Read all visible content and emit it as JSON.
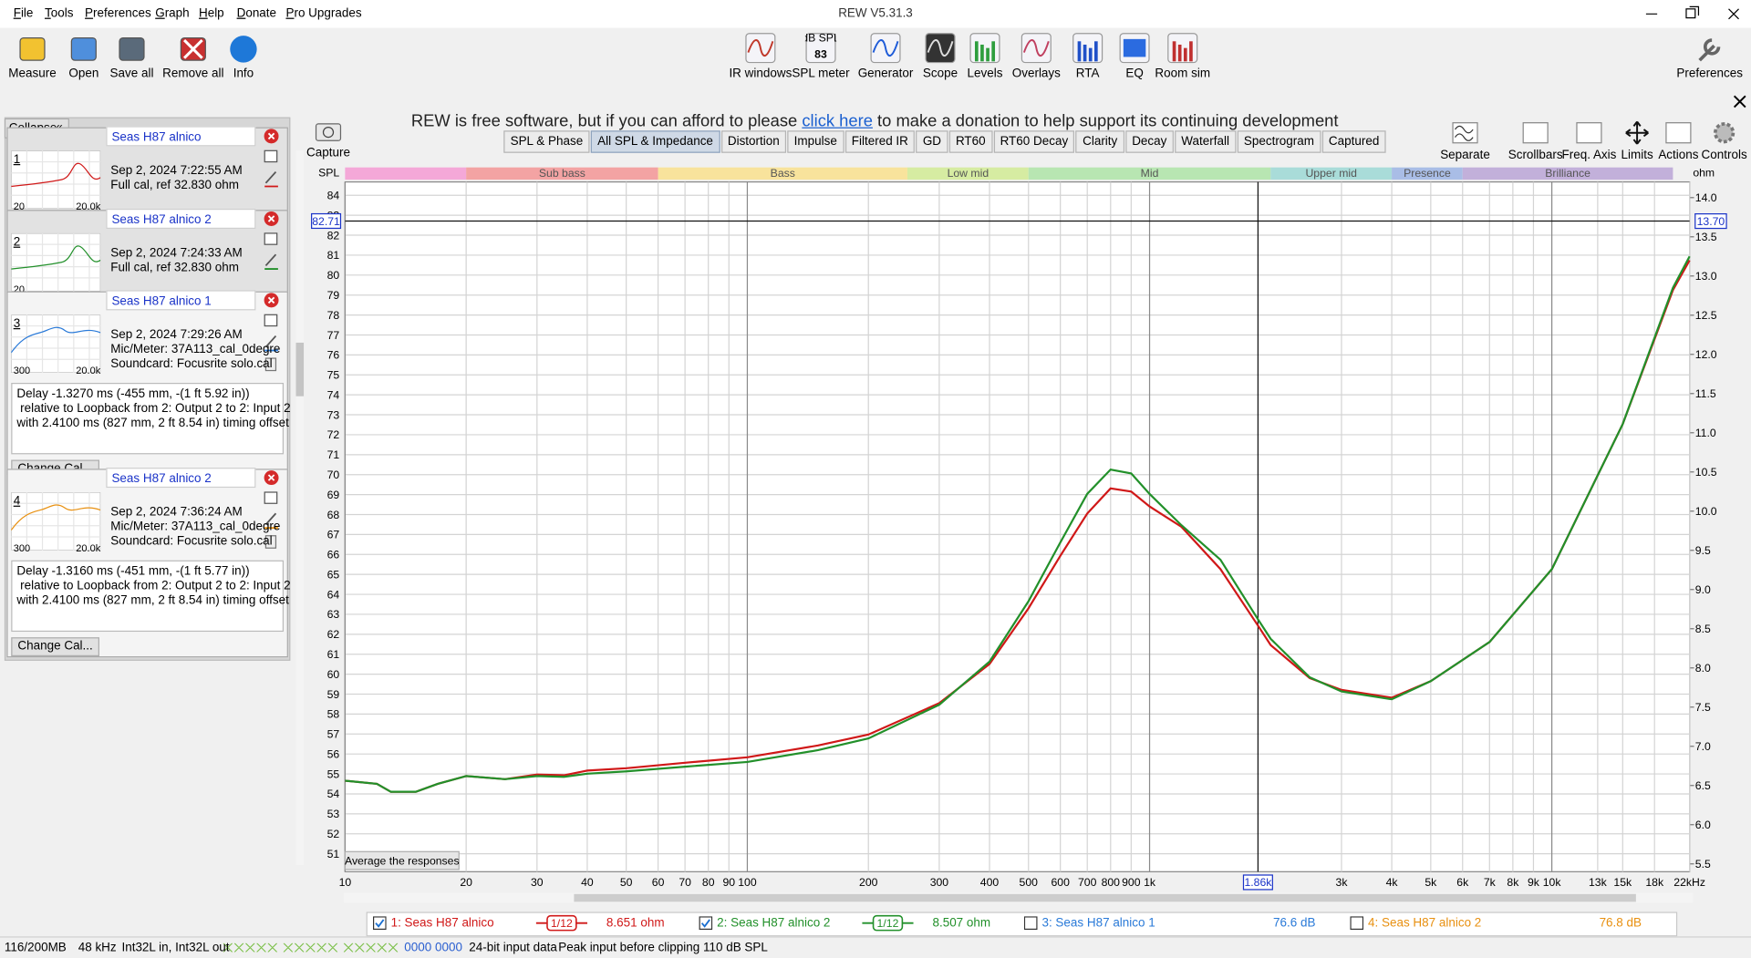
{
  "window": {
    "title": "REW V5.31.3"
  },
  "menu": [
    "File",
    "Tools",
    "Preferences",
    "Graph",
    "Help",
    "Donate",
    "Pro Upgrades"
  ],
  "toolbar_left": [
    "Measure",
    "Open",
    "Save all",
    "Remove all",
    "Info"
  ],
  "toolbar_center": [
    "IR windows",
    "SPL meter",
    "Generator",
    "Scope",
    "Levels",
    "Overlays",
    "RTA",
    "EQ",
    "Room sim"
  ],
  "spl_meter_icon": {
    "unit": "dB SPL",
    "reading": 83
  },
  "toolbar_right": [
    "Preferences"
  ],
  "banner": {
    "before": "REW is free software, but if you can afford to please",
    "link": "click here",
    "after": "to make a donation to help support its continuing development"
  },
  "panel": {
    "collapse": "Collapse",
    "measurements": [
      {
        "number": "1",
        "name": "Seas H87 alnico",
        "color": "#d01818",
        "lines": [
          "Sep 2, 2024 7:22:55 AM",
          "Full cal, ref 32.830 ohm"
        ],
        "thumb_labels": [
          "20",
          "20.0k"
        ]
      },
      {
        "number": "2",
        "name": "Seas H87 alnico 2",
        "color": "#22902a",
        "lines": [
          "Sep 2, 2024 7:24:33 AM",
          "Full cal, ref 32.830 ohm"
        ],
        "thumb_labels": [
          "20"
        ]
      },
      {
        "number": "3",
        "name": "Seas H87 alnico 1",
        "color": "#2a7ad8",
        "lines": [
          "Sep 2, 2024 7:29:26 AM",
          "Mic/Meter: 37A113_cal_0degre",
          "Soundcard: Focusrite solo.cal"
        ],
        "thumb_labels": [
          "300",
          "20.0k"
        ],
        "note": [
          "Delay -1.3270 ms (-455 mm, -(1 ft 5.92 in))",
          " relative to Loopback from 2: Output 2 to 2: Input 2",
          "with 2.4100 ms (827 mm, 2 ft 8.54 in) timing offset"
        ],
        "button": "Change Cal..."
      },
      {
        "number": "4",
        "name": "Seas H87 alnico 2",
        "color": "#e89010",
        "lines": [
          "Sep 2, 2024 7:36:24 AM",
          "Mic/Meter: 37A113_cal_0degre",
          "Soundcard: Focusrite solo.cal"
        ],
        "thumb_labels": [
          "300",
          "20.0k"
        ],
        "note": [
          "Delay -1.3160 ms (-451 mm, -(1 ft 5.77 in))",
          " relative to Loopback from 2: Output 2 to 2: Input 2",
          "with 2.4100 ms (827 mm, 2 ft 8.54 in) timing offset"
        ],
        "button": "Change Cal..."
      }
    ]
  },
  "capture": "Capture",
  "graph_tabs": [
    "SPL & Phase",
    "All SPL & Impedance",
    "Distortion",
    "Impulse",
    "Filtered IR",
    "GD",
    "RT60",
    "RT60 Decay",
    "Clarity",
    "Decay",
    "Waterfall",
    "Spectrogram",
    "Captured"
  ],
  "active_tab": 1,
  "graph_tools": [
    "Separate",
    "Scrollbars",
    "Freq. Axis",
    "Limits",
    "Actions",
    "Controls"
  ],
  "chart_data": {
    "type": "line",
    "ylabel": "SPL",
    "y2label": "ohm",
    "log_x": true,
    "grid": true,
    "xlim": [
      10,
      22000
    ],
    "ylim": [
      50.1,
      84.67
    ],
    "y2lim": [
      5.4,
      14.2
    ],
    "xticks": [
      10,
      20,
      30,
      40,
      50,
      60,
      70,
      80,
      90,
      100,
      200,
      300,
      400,
      500,
      600,
      700,
      800,
      900,
      {
        "value": 1000,
        "label": "1k"
      },
      {
        "value": 3000,
        "label": "3k"
      },
      {
        "value": 4000,
        "label": "4k"
      },
      {
        "value": 5000,
        "label": "5k"
      },
      {
        "value": 6000,
        "label": "6k"
      },
      {
        "value": 7000,
        "label": "7k"
      },
      {
        "value": 8000,
        "label": "8k"
      },
      {
        "value": 9000,
        "label": "9k"
      },
      {
        "value": 10000,
        "label": "10k"
      },
      {
        "value": 13000,
        "label": "13k"
      },
      {
        "value": 15000,
        "label": "15k"
      },
      {
        "value": 18000,
        "label": "18k"
      },
      {
        "value": 22000,
        "label": "22kHz"
      }
    ],
    "yticks": [
      51,
      52,
      53,
      54,
      55,
      56,
      57,
      58,
      59,
      60,
      61,
      62,
      63,
      64,
      65,
      66,
      67,
      68,
      69,
      70,
      71,
      72,
      73,
      74,
      75,
      76,
      77,
      78,
      79,
      80,
      81,
      82,
      83,
      84
    ],
    "y2ticks": [
      5.5,
      {
        "value": 6,
        "label": "6.0"
      },
      6.5,
      {
        "value": 7,
        "label": "7.0"
      },
      7.5,
      {
        "value": 8,
        "label": "8.0"
      },
      8.5,
      {
        "value": 9,
        "label": "9.0"
      },
      9.5,
      {
        "value": 10,
        "label": "10.0"
      },
      10.5,
      {
        "value": 11,
        "label": "11.0"
      },
      11.5,
      {
        "value": 12,
        "label": "12.0"
      },
      12.5,
      {
        "value": 13,
        "label": "13.0"
      },
      13.5,
      {
        "value": 14,
        "label": "14.0"
      }
    ],
    "bands": [
      {
        "name": null,
        "from": 10,
        "to": 20,
        "color": "#f4a8d8"
      },
      {
        "name": "Sub bass",
        "from": 20,
        "to": 60,
        "color": "#f3a3a3"
      },
      {
        "name": "Bass",
        "from": 60,
        "to": 250,
        "color": "#f8e39c"
      },
      {
        "name": "Low mid",
        "from": 250,
        "to": 500,
        "color": "#d6eca2"
      },
      {
        "name": "Mid",
        "from": 500,
        "to": 2000,
        "color": "#b8e6b2"
      },
      {
        "name": "Upper mid",
        "from": 2000,
        "to": 4000,
        "color": "#a9dcd9"
      },
      {
        "name": "Presence",
        "from": 4000,
        "to": 6000,
        "color": "#a9bde6"
      },
      {
        "name": "Brilliance",
        "from": 6000,
        "to": 20000,
        "color": "#c2b0da"
      }
    ],
    "cursor": {
      "spl": 82.71,
      "ohm": {
        "value": 13.7,
        "label": "13.70"
      },
      "freq": {
        "value": 1860,
        "label": "1.86k"
      }
    },
    "average_button": "Average the responses",
    "x": [
      10,
      12,
      13,
      15,
      17,
      20,
      25,
      30,
      35,
      40,
      50,
      70,
      100,
      150,
      200,
      300,
      400,
      500,
      600,
      700,
      800,
      900,
      1000,
      1200,
      1500,
      1860,
      2000,
      2500,
      3000,
      4000,
      5000,
      7000,
      10000,
      15000,
      20000,
      22000
    ],
    "series": [
      {
        "name": "1: Seas H87 alnico",
        "color": "#d01818",
        "axis": "y2",
        "checked": true,
        "smoothing": "1/12",
        "reading": "8.651 ohm",
        "values": [
          6.56,
          6.52,
          6.42,
          6.42,
          6.52,
          6.62,
          6.58,
          6.64,
          6.63,
          6.69,
          6.72,
          6.79,
          6.86,
          7.01,
          7.15,
          7.55,
          8.05,
          8.76,
          9.43,
          9.97,
          10.29,
          10.25,
          10.06,
          9.8,
          9.26,
          8.54,
          8.29,
          7.87,
          7.72,
          7.62,
          7.83,
          8.33,
          9.26,
          11.11,
          12.82,
          13.2
        ]
      },
      {
        "name": "2: Seas H87 alnico 2",
        "color": "#22902a",
        "axis": "y2",
        "checked": true,
        "smoothing": "1/12",
        "reading": "8.507 ohm",
        "values": [
          6.56,
          6.52,
          6.42,
          6.42,
          6.52,
          6.62,
          6.58,
          6.62,
          6.61,
          6.65,
          6.68,
          6.74,
          6.8,
          6.95,
          7.1,
          7.53,
          8.08,
          8.85,
          9.6,
          10.22,
          10.53,
          10.48,
          10.22,
          9.82,
          9.38,
          8.62,
          8.37,
          7.88,
          7.7,
          7.6,
          7.83,
          8.33,
          9.26,
          11.11,
          12.85,
          13.25
        ]
      },
      {
        "name": "3: Seas H87 alnico 1",
        "color": "#2a7ad8",
        "checked": false,
        "reading": "76.6 dB"
      },
      {
        "name": "4: Seas H87 alnico 2",
        "color": "#e89010",
        "checked": false,
        "reading": "76.8 dB"
      }
    ]
  },
  "status": [
    "116/200MB",
    "48 kHz",
    "Int32L in, Int32L out",
    "0000 0000",
    "24-bit input data",
    "Peak input before clipping 110 dB SPL"
  ]
}
